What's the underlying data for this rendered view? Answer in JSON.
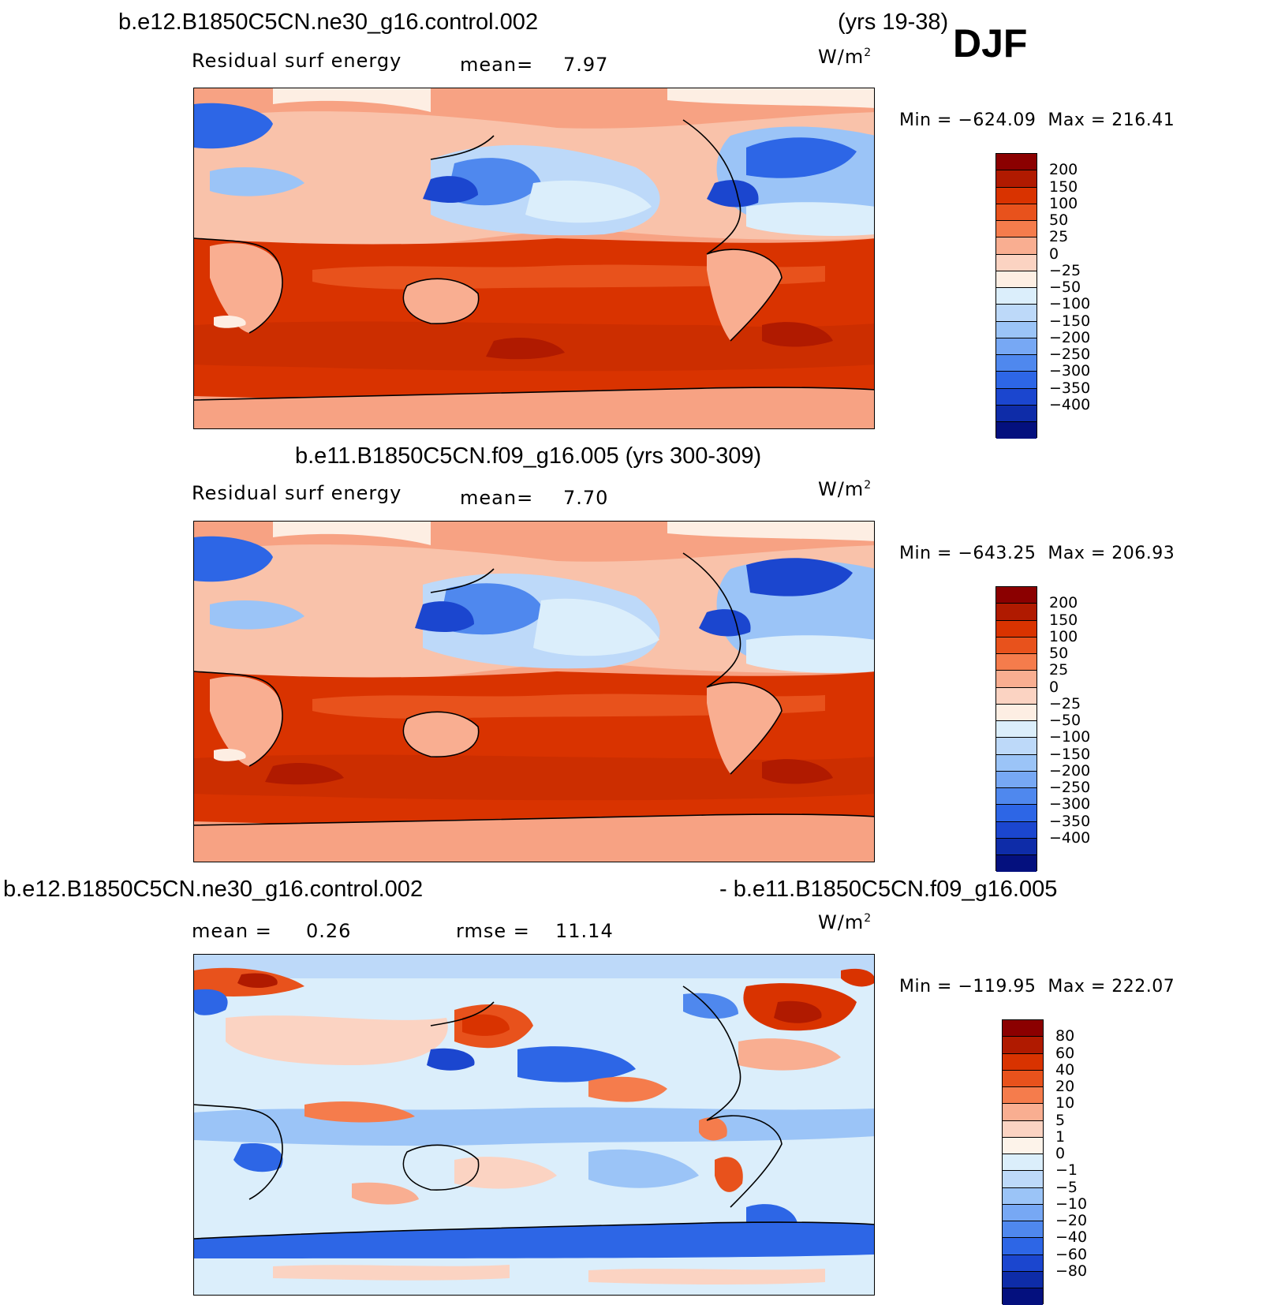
{
  "season": "DJF",
  "panels": [
    {
      "title_left": "b.e12.B1850C5CN.ne30_g16.control.002",
      "title_right": "(yrs 19-38)",
      "var_label": "Residual surf energy",
      "stat1_label": "mean=",
      "stat1_value": "7.97",
      "stat2_label": "",
      "stat2_value": "",
      "units": "W/m",
      "units_sup": "2",
      "min_label": "Min",
      "min_value": "−624.09",
      "max_label": "Max",
      "max_value": "216.41",
      "colorbar": {
        "colors": [
          "#8b0000",
          "#b01a00",
          "#d93300",
          "#e8521c",
          "#f57c4c",
          "#f9ae91",
          "#fbd3c2",
          "#fdeee3",
          "#dbeefb",
          "#bdd9f9",
          "#9bc4f7",
          "#77a8f4",
          "#4f88ee",
          "#2d66e6",
          "#1b46cf",
          "#0e2ca8",
          "#04107e"
        ],
        "labels": [
          "200",
          "150",
          "100",
          "50",
          "25",
          "0",
          "−25",
          "−50",
          "−100",
          "−150",
          "−200",
          "−250",
          "−300",
          "−350",
          "−400"
        ]
      }
    },
    {
      "title_left": "b.e11.B1850C5CN.f09_g16.005 (yrs 300-309)",
      "title_right": "",
      "var_label": "Residual surf energy",
      "stat1_label": "mean=",
      "stat1_value": "7.70",
      "stat2_label": "",
      "stat2_value": "",
      "units": "W/m",
      "units_sup": "2",
      "min_label": "Min",
      "min_value": "−643.25",
      "max_label": "Max",
      "max_value": "206.93",
      "colorbar": {
        "colors": [
          "#8b0000",
          "#b01a00",
          "#d93300",
          "#e8521c",
          "#f57c4c",
          "#f9ae91",
          "#fbd3c2",
          "#fdeee3",
          "#dbeefb",
          "#bdd9f9",
          "#9bc4f7",
          "#77a8f4",
          "#4f88ee",
          "#2d66e6",
          "#1b46cf",
          "#0e2ca8",
          "#04107e"
        ],
        "labels": [
          "200",
          "150",
          "100",
          "50",
          "25",
          "0",
          "−25",
          "−50",
          "−100",
          "−150",
          "−200",
          "−250",
          "−300",
          "−350",
          "−400"
        ]
      }
    },
    {
      "title_left": "b.e12.B1850C5CN.ne30_g16.control.002",
      "title_right": "- b.e11.B1850C5CN.f09_g16.005",
      "var_label": "",
      "stat1_label": "mean =",
      "stat1_value": "0.26",
      "stat2_label": "rmse =",
      "stat2_value": "11.14",
      "units": "W/m",
      "units_sup": "2",
      "min_label": "Min",
      "min_value": "−119.95",
      "max_label": "Max",
      "max_value": "222.07",
      "colorbar": {
        "colors": [
          "#8b0000",
          "#b01a00",
          "#d93300",
          "#e8521c",
          "#f57c4c",
          "#f9ae91",
          "#fbd3c2",
          "#fdf3ea",
          "#dbeefb",
          "#bdd9f9",
          "#9bc4f7",
          "#77a8f4",
          "#4f88ee",
          "#2d66e6",
          "#1b46cf",
          "#0e2ca8",
          "#04107e"
        ],
        "labels": [
          "80",
          "60",
          "40",
          "20",
          "10",
          "5",
          "1",
          "0",
          "−1",
          "−5",
          "−10",
          "−20",
          "−40",
          "−60",
          "−80"
        ]
      }
    }
  ]
}
